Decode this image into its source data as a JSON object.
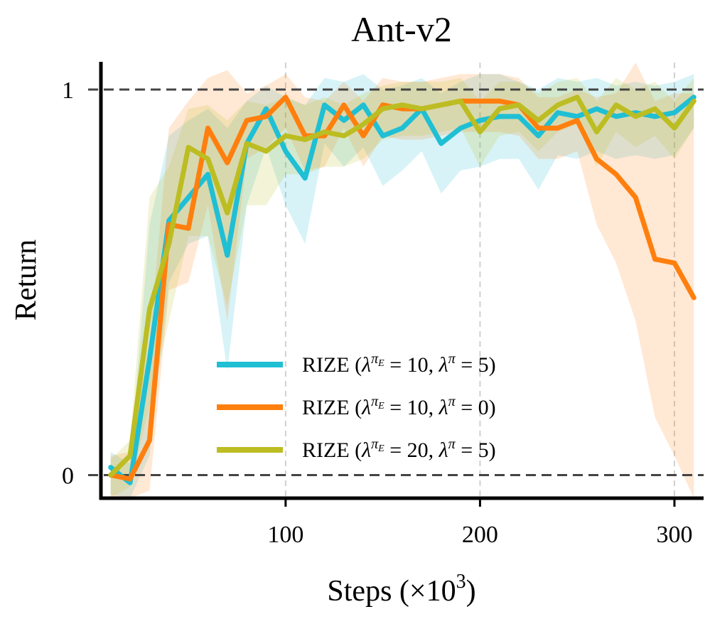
{
  "chart_data": {
    "type": "line",
    "title": "Ant-v2",
    "xlabel": "Steps (×10",
    "xlabel_exponent": "3",
    "xlabel_suffix": ")",
    "ylabel": "Return",
    "xlim": [
      5,
      315
    ],
    "ylim": [
      -0.06,
      1.07
    ],
    "xticks": [
      100,
      200,
      300
    ],
    "xtick_labels": [
      "100",
      "200",
      "300"
    ],
    "yticks": [
      0,
      1
    ],
    "ytick_labels": [
      "0",
      "1"
    ],
    "reference_lines": [
      0,
      1
    ],
    "grid": "vertical dashed at x ticks",
    "legend_position": "lower-center",
    "x": [
      10,
      20,
      30,
      40,
      50,
      60,
      70,
      80,
      90,
      100,
      110,
      120,
      130,
      140,
      150,
      160,
      170,
      180,
      190,
      200,
      210,
      220,
      230,
      240,
      250,
      260,
      270,
      280,
      290,
      300,
      310
    ],
    "series": [
      {
        "name": "RIZE",
        "legend_label": "RIZE (λ^πE = 10, λ^π = 5)",
        "legend_label_prefix": "RIZE (",
        "legend_l1_base": "λ",
        "legend_l1_sup": "π",
        "legend_l1_sub": "E",
        "legend_l1_value": " = 10, ",
        "legend_l2_base": "λ",
        "legend_l2_sup": "π",
        "legend_l2_value": " = 5)",
        "color": "#1fbfd4",
        "values": [
          0.02,
          -0.02,
          0.3,
          0.66,
          0.72,
          0.78,
          0.57,
          0.86,
          0.95,
          0.84,
          0.77,
          0.96,
          0.92,
          0.96,
          0.88,
          0.9,
          0.95,
          0.86,
          0.9,
          0.92,
          0.93,
          0.93,
          0.88,
          0.94,
          0.93,
          0.95,
          0.93,
          0.94,
          0.93,
          0.94,
          0.98
        ],
        "lower": [
          -0.05,
          -0.06,
          0.05,
          0.5,
          0.6,
          0.62,
          0.27,
          0.7,
          0.85,
          0.7,
          0.6,
          0.86,
          0.8,
          0.85,
          0.75,
          0.79,
          0.84,
          0.73,
          0.79,
          0.8,
          0.82,
          0.82,
          0.74,
          0.83,
          0.82,
          0.84,
          0.82,
          0.83,
          0.82,
          0.83,
          0.9
        ],
        "upper": [
          0.06,
          0.03,
          0.65,
          0.88,
          0.92,
          0.95,
          0.9,
          0.97,
          1.01,
          0.98,
          0.96,
          1.03,
          1.02,
          1.04,
          1.0,
          1.01,
          1.03,
          0.99,
          1.02,
          1.04,
          1.04,
          1.02,
          1.0,
          1.03,
          1.02,
          1.03,
          1.01,
          1.02,
          1.01,
          1.02,
          1.04
        ]
      },
      {
        "name": "RIZE",
        "legend_label": "RIZE (λ^πE = 10, λ^π = 0)",
        "legend_label_prefix": "RIZE (",
        "legend_l1_base": "λ",
        "legend_l1_sup": "π",
        "legend_l1_sub": "E",
        "legend_l1_value": " = 10, ",
        "legend_l2_base": "λ",
        "legend_l2_sup": "π",
        "legend_l2_value": " = 0)",
        "color": "#ff7f0e",
        "values": [
          0.0,
          -0.01,
          0.09,
          0.65,
          0.64,
          0.9,
          0.81,
          0.92,
          0.93,
          0.98,
          0.88,
          0.88,
          0.96,
          0.88,
          0.96,
          0.95,
          0.95,
          0.96,
          0.97,
          0.97,
          0.97,
          0.96,
          0.9,
          0.9,
          0.92,
          0.82,
          0.78,
          0.72,
          0.56,
          0.55,
          0.46
        ],
        "lower": [
          -0.06,
          -0.06,
          -0.04,
          0.48,
          0.5,
          0.7,
          0.4,
          0.82,
          0.85,
          0.9,
          0.79,
          0.8,
          0.9,
          0.8,
          0.88,
          0.87,
          0.87,
          0.88,
          0.89,
          0.89,
          0.89,
          0.88,
          0.82,
          0.82,
          0.84,
          0.65,
          0.55,
          0.4,
          0.15,
          0.05,
          -0.06
        ],
        "upper": [
          0.05,
          0.06,
          0.35,
          0.9,
          0.97,
          1.03,
          1.05,
          0.99,
          1.01,
          1.04,
          0.98,
          0.97,
          1.02,
          0.97,
          1.03,
          1.02,
          1.02,
          1.03,
          1.04,
          1.04,
          1.04,
          1.03,
          0.98,
          0.98,
          1.0,
          0.98,
          0.99,
          1.07,
          0.97,
          0.99,
          0.99
        ]
      },
      {
        "name": "RIZE",
        "legend_label": "RIZE (λ^πE = 20, λ^π = 5)",
        "legend_label_prefix": "RIZE (",
        "legend_l1_base": "λ",
        "legend_l1_sup": "π",
        "legend_l1_sub": "E",
        "legend_l1_value": " = 20, ",
        "legend_l2_base": "λ",
        "legend_l2_sup": "π",
        "legend_l2_value": " = 5)",
        "color": "#bcbd22",
        "values": [
          0.0,
          0.05,
          0.43,
          0.6,
          0.85,
          0.82,
          0.68,
          0.86,
          0.84,
          0.88,
          0.87,
          0.89,
          0.88,
          0.91,
          0.95,
          0.96,
          0.95,
          0.96,
          0.97,
          0.89,
          0.95,
          0.96,
          0.92,
          0.96,
          0.98,
          0.89,
          0.96,
          0.93,
          0.95,
          0.9,
          0.97
        ],
        "lower": [
          -0.06,
          -0.03,
          0.18,
          0.4,
          0.62,
          0.62,
          0.44,
          0.7,
          0.7,
          0.78,
          0.78,
          0.8,
          0.8,
          0.82,
          0.87,
          0.88,
          0.88,
          0.89,
          0.9,
          0.8,
          0.88,
          0.89,
          0.84,
          0.89,
          0.91,
          0.8,
          0.89,
          0.85,
          0.88,
          0.82,
          0.9
        ],
        "upper": [
          0.04,
          0.09,
          0.72,
          0.8,
          0.95,
          0.96,
          0.92,
          0.97,
          0.96,
          0.98,
          0.96,
          0.98,
          0.96,
          0.99,
          1.01,
          1.02,
          1.02,
          1.02,
          1.03,
          0.97,
          1.02,
          1.02,
          0.99,
          1.02,
          1.03,
          0.97,
          1.03,
          1.0,
          1.02,
          0.97,
          1.03
        ]
      }
    ]
  }
}
